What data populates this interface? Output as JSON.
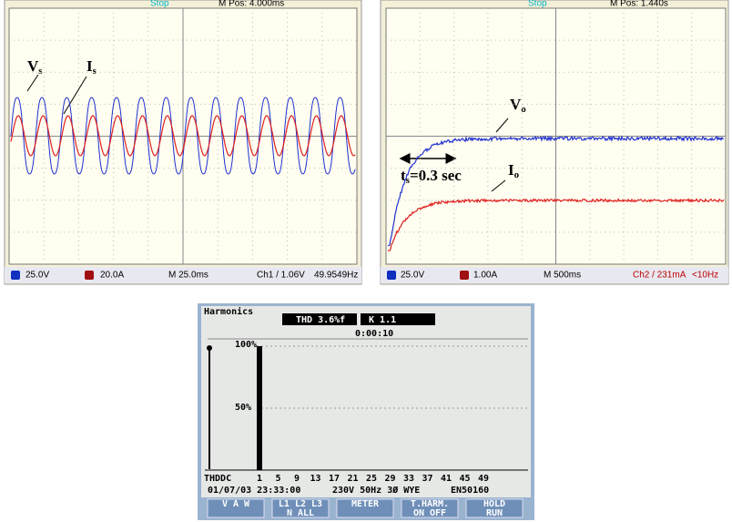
{
  "scope_1": {
    "trigger": "Stop",
    "position": "M Pos: 4.000ms",
    "annotations": [
      {
        "main": "V",
        "sub": "s"
      },
      {
        "main": "I",
        "sub": "s"
      }
    ],
    "status": {
      "ch1": "25.0V",
      "ch2": "20.0A",
      "timebase": "M 25.0ms",
      "trigger": "Ch1 / 1.06V",
      "frequency": "49.9549Hz"
    }
  },
  "scope_2": {
    "trigger": "Stop",
    "position": "M Pos: 1.440s",
    "annotations": [
      {
        "main": "V",
        "sub": "o"
      },
      {
        "main": "I",
        "sub": "o"
      },
      {
        "main": "t",
        "sub": "s",
        "rest": "=0.3 sec"
      }
    ],
    "status": {
      "ch1": "25.0V",
      "ch2": "1.00A",
      "timebase": "M 500ms",
      "trigger": "Ch2 / 231mA",
      "frequency": "<10Hz"
    }
  },
  "analyzer": {
    "title": "Harmonics",
    "thd": "THD 3.6%f",
    "k": "K 1.1",
    "timer": "0:00:10",
    "scale_top": "100%",
    "scale_mid": "50%",
    "dc_label": "THDDC",
    "harmonics": {
      "categories": [
        "1",
        "5",
        "9",
        "13",
        "17",
        "21",
        "25",
        "29",
        "33",
        "37",
        "41",
        "45",
        "49"
      ],
      "values": [
        100,
        0,
        0,
        0,
        0,
        0,
        0,
        0,
        0,
        0,
        0,
        0,
        0
      ]
    },
    "footer": {
      "datetime": "01/07/03 23:33:00",
      "config": "230V 50Hz 3Ø WYE",
      "standard": "EN50160"
    },
    "softkeys": [
      {
        "top": "V A W",
        "bottom": ""
      },
      {
        "top": "L1 L2 L3",
        "bottom": "N ALL"
      },
      {
        "top": "METER",
        "bottom": ""
      },
      {
        "top": "T.HARM.",
        "bottom": "ON OFF"
      },
      {
        "top": "HOLD",
        "bottom": "RUN"
      }
    ]
  }
}
